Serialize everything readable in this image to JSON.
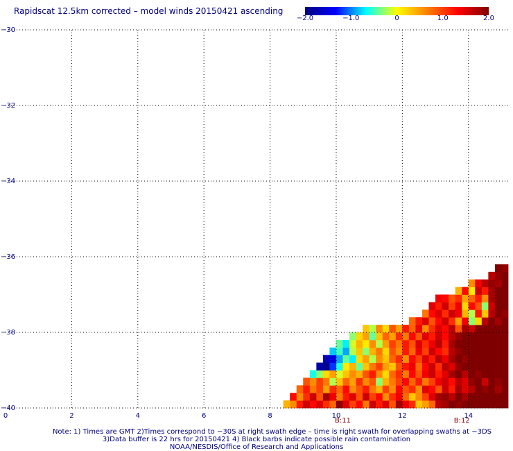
{
  "title": "Rapidscat 12.5km corrected – model winds 20150421 ascending",
  "colorbar": {
    "ticks": [
      "−2.0",
      "−1.0",
      "0",
      "1.0",
      "2.0"
    ],
    "tick_values": [
      -2.0,
      -1.0,
      0,
      1.0,
      2.0
    ],
    "range": [
      -2.0,
      2.0
    ],
    "colors": [
      "#00007f",
      "#0000ff",
      "#00ffff",
      "#ffff00",
      "#ff7f00",
      "#ff0000",
      "#7f0000"
    ]
  },
  "axes": {
    "x_ticks": [
      "0",
      "2",
      "4",
      "6",
      "8",
      "10",
      "12",
      "14"
    ],
    "x_tick_values": [
      0,
      2,
      4,
      6,
      8,
      10,
      12,
      14
    ],
    "y_ticks": [
      "−30",
      "−32",
      "−34",
      "−36",
      "−38",
      "−40"
    ],
    "y_tick_values": [
      -30,
      -32,
      -34,
      -36,
      -38,
      -40
    ],
    "xlim": [
      0,
      15.2
    ],
    "ylim": [
      -40,
      -30
    ],
    "grid": true,
    "time_labels": [
      {
        "text": "B:11",
        "x": 10.2
      },
      {
        "text": "B:12",
        "x": 13.8
      }
    ]
  },
  "notes": {
    "line1": "Note: 1) Times are GMT 2)Times correspond to −30S at right swath edge – time is right swath for overlapping swaths at −3DS",
    "line2": "3)Data buffer is 22 hrs for 20150421 4) Black barbs indicate possible rain contamination",
    "line3": "NOAA/NESDIS/Office of Research and Applications"
  },
  "chart_data": {
    "type": "heatmap",
    "title": "Rapidscat 12.5km corrected – model winds 20150421 ascending",
    "xlabel": "",
    "ylabel": "",
    "xlim": [
      0,
      15.2
    ],
    "ylim": [
      -40,
      -30
    ],
    "value_range": [
      -2.0,
      2.0
    ],
    "cell_size": [
      0.2,
      0.2
    ],
    "rows": [
      {
        "y": -39.9,
        "x0": 8.4,
        "values": [
          0.4,
          0.6,
          1.2,
          1.6,
          1.3,
          1.5,
          1.1,
          0.8,
          1.9,
          1.5,
          1.0,
          1.3,
          0.7,
          1.6,
          1.2,
          1.5,
          0.9,
          1.8,
          1.4,
          1.1,
          0.3,
          0.5,
          0.8,
          1.7,
          1.8,
          2.0,
          1.9,
          2.0,
          2.0,
          2.0,
          2.0,
          2.0,
          2.0,
          2.0
        ]
      },
      {
        "y": -39.7,
        "x0": 8.6,
        "values": [
          1.3,
          0.6,
          1.1,
          1.6,
          0.9,
          1.8,
          1.4,
          0.7,
          1.2,
          1.5,
          0.9,
          1.6,
          1.0,
          1.3,
          0.6,
          1.1,
          1.4,
          0.8,
          0.3,
          0.6,
          1.0,
          1.5,
          1.8,
          1.9,
          1.7,
          2.0,
          1.8,
          2.0,
          2.0,
          2.0,
          2.0,
          2.0,
          2.0
        ]
      },
      {
        "y": -39.5,
        "x0": 8.8,
        "values": [
          0.8,
          1.2,
          0.7,
          1.0,
          0.5,
          1.1,
          0.8,
          1.3,
          0.6,
          0.9,
          1.2,
          0.7,
          0.4,
          1.0,
          0.6,
          1.3,
          0.9,
          1.1,
          0.6,
          1.5,
          1.3,
          0.9,
          1.6,
          1.2,
          1.8,
          1.5,
          1.7,
          2.0,
          1.9,
          2.0,
          1.8,
          2.0
        ]
      },
      {
        "y": -39.3,
        "x0": 9.0,
        "values": [
          0.9,
          0.6,
          1.0,
          0.7,
          -0.2,
          0.3,
          0.8,
          0.5,
          1.1,
          0.6,
          0.9,
          -0.3,
          0.4,
          0.7,
          1.0,
          1.3,
          0.8,
          1.2,
          0.7,
          1.0,
          1.4,
          1.6,
          1.3,
          1.7,
          1.5,
          1.9,
          2.0,
          1.6,
          2.0,
          1.9,
          2.0
        ]
      },
      {
        "y": -39.1,
        "x0": 9.2,
        "values": [
          -0.6,
          -0.3,
          0.2,
          0.5,
          -0.1,
          0.3,
          0.6,
          0.4,
          0.9,
          1.2,
          0.6,
          0.2,
          0.8,
          1.1,
          0.7,
          1.3,
          0.9,
          1.4,
          1.6,
          1.2,
          1.5,
          1.8,
          2.0,
          1.7,
          2.0,
          1.9,
          2.0,
          2.0,
          2.0,
          2.0
        ]
      },
      {
        "y": -38.9,
        "x0": 9.4,
        "values": [
          -1.8,
          -1.9,
          -1.2,
          -0.6,
          0.1,
          0.4,
          -0.4,
          0.3,
          0.7,
          1.0,
          0.5,
          0.3,
          0.9,
          1.2,
          1.4,
          0.8,
          1.3,
          1.6,
          1.1,
          1.7,
          1.5,
          1.9,
          2.0,
          2.0,
          2.0,
          2.0,
          2.0,
          2.0,
          2.0
        ]
      },
      {
        "y": -38.7,
        "x0": 9.6,
        "values": [
          -1.7,
          -1.5,
          -0.9,
          -0.4,
          -0.7,
          0.2,
          0.5,
          -0.2,
          0.6,
          0.3,
          0.8,
          1.1,
          0.6,
          1.3,
          1.0,
          1.5,
          1.2,
          1.7,
          1.4,
          1.8,
          2.0,
          1.9,
          2.0,
          2.0,
          2.0,
          2.0,
          2.0,
          2.0
        ]
      },
      {
        "y": -38.5,
        "x0": 9.8,
        "values": [
          -0.8,
          -0.5,
          -0.9,
          -0.2,
          0.3,
          -0.3,
          0.4,
          0.7,
          0.2,
          0.9,
          0.6,
          1.2,
          0.8,
          1.4,
          1.0,
          1.6,
          1.3,
          1.1,
          1.7,
          1.9,
          2.0,
          2.0,
          2.0,
          2.0,
          2.0,
          2.0,
          2.0
        ]
      },
      {
        "y": -38.3,
        "x0": 10.0,
        "values": [
          -0.4,
          -0.7,
          -0.1,
          0.4,
          0.1,
          0.6,
          -0.2,
          0.5,
          1.0,
          0.7,
          1.2,
          0.9,
          1.5,
          1.1,
          1.4,
          1.7,
          1.2,
          1.8,
          2.0,
          2.0,
          2.0,
          2.0,
          2.0,
          2.0,
          2.0,
          2.0
        ]
      },
      {
        "y": -38.1,
        "x0": 10.4,
        "values": [
          -0.3,
          0.2,
          0.5,
          -0.4,
          0.3,
          0.8,
          0.5,
          1.1,
          0.7,
          1.3,
          0.9,
          1.5,
          1.2,
          1.6,
          1.3,
          1.7,
          1.9,
          2.0,
          2.0,
          2.0,
          2.0,
          2.0,
          2.0,
          2.0
        ]
      },
      {
        "y": -37.9,
        "x0": 10.8,
        "values": [
          0.3,
          -0.2,
          0.6,
          0.2,
          0.9,
          0.5,
          1.2,
          0.8,
          1.4,
          0.6,
          1.1,
          1.5,
          1.3,
          1.7,
          0.9,
          1.8,
          1.6,
          2.0,
          2.0,
          2.0,
          2.0,
          2.0
        ]
      },
      {
        "y": -37.7,
        "x0": 12.2,
        "values": [
          0.8,
          1.2,
          1.5,
          0.9,
          1.3,
          1.6,
          1.1,
          0.5,
          1.4,
          -0.3,
          0.2,
          1.7,
          2.0,
          1.8,
          2.0
        ]
      },
      {
        "y": -37.5,
        "x0": 12.6,
        "values": [
          0.7,
          1.3,
          1.5,
          1.1,
          1.6,
          1.4,
          0.4,
          -0.2,
          1.2,
          0.3,
          1.7,
          2.0,
          1.9
        ]
      },
      {
        "y": -37.3,
        "x0": 12.8,
        "values": [
          1.5,
          1.2,
          1.6,
          1.0,
          1.4,
          0.2,
          1.3,
          0.9,
          -0.3,
          1.6,
          2.0,
          2.0
        ]
      },
      {
        "y": -37.1,
        "x0": 13.0,
        "values": [
          1.4,
          1.3,
          0.9,
          1.1,
          0.5,
          0.8,
          1.2,
          0.6,
          1.8,
          2.0,
          2.0
        ]
      },
      {
        "y": -36.9,
        "x0": 13.6,
        "values": [
          0.4,
          1.3,
          0.1,
          1.6,
          1.2,
          1.8,
          2.0,
          2.0
        ]
      },
      {
        "y": -36.7,
        "x0": 14.0,
        "values": [
          0.6,
          1.4,
          1.7,
          1.9,
          1.8,
          2.0
        ]
      },
      {
        "y": -36.5,
        "x0": 14.6,
        "values": [
          1.7,
          1.9,
          2.0
        ]
      },
      {
        "y": -36.3,
        "x0": 14.8,
        "values": [
          2.0,
          1.9
        ]
      }
    ],
    "annotations": [
      "B:11",
      "B:12"
    ]
  }
}
